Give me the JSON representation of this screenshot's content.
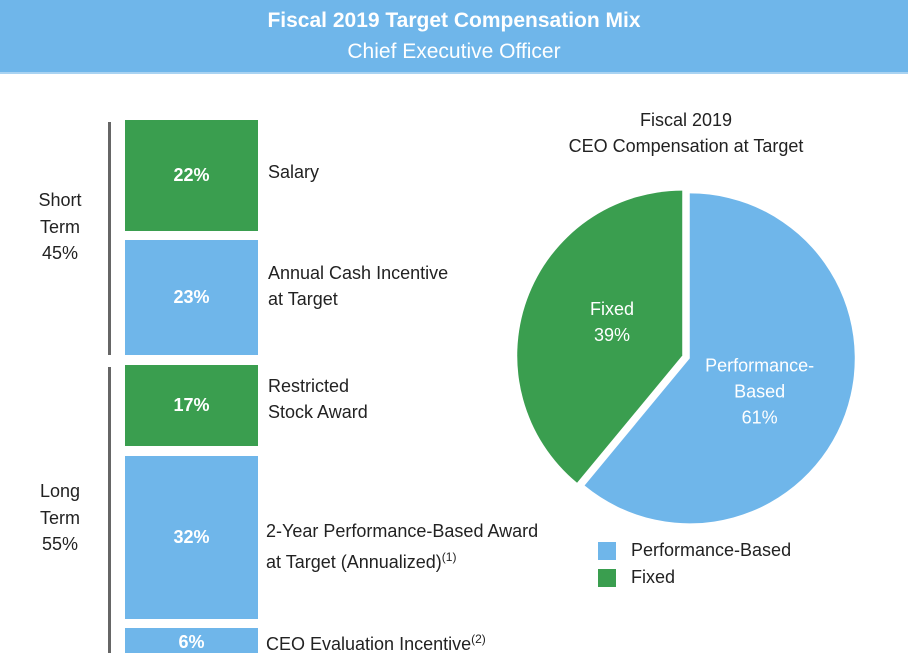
{
  "header": {
    "title": "Fiscal 2019 Target Compensation Mix",
    "subtitle": "Chief Executive Officer"
  },
  "colors": {
    "performance": "#6fb6ea",
    "fixed": "#3a9e4f"
  },
  "chart_data": [
    {
      "type": "bar",
      "orientation": "stacked-vertical",
      "groups": [
        {
          "name": "Short Term",
          "value": "45%"
        },
        {
          "name": "Long Term",
          "value": "55%"
        }
      ],
      "items": [
        {
          "label": "22%",
          "name": "Salary",
          "value": 22,
          "kind": "fixed",
          "group": "Short Term"
        },
        {
          "label": "23%",
          "name": "Annual Cash Incentive at Target",
          "value": 23,
          "kind": "performance",
          "group": "Short Term"
        },
        {
          "label": "17%",
          "name": "Restricted Stock Award",
          "value": 17,
          "kind": "fixed",
          "group": "Long Term"
        },
        {
          "label": "32%",
          "name": "2-Year Performance-Based Award at Target (Annualized)",
          "footnote": "(1)",
          "value": 32,
          "kind": "performance",
          "group": "Long Term"
        },
        {
          "label": "6%",
          "name": "CEO Evaluation Incentive",
          "footnote": "(2)",
          "value": 6,
          "kind": "performance",
          "group": "Long Term"
        }
      ]
    },
    {
      "type": "pie",
      "title": [
        "Fiscal 2019",
        "CEO Compensation at Target"
      ],
      "slices": [
        {
          "name": "Performance-Based",
          "label": [
            "Performance-",
            "Based",
            "61%"
          ],
          "value": 61
        },
        {
          "name": "Fixed",
          "label": [
            "Fixed",
            "39%"
          ],
          "value": 39
        }
      ],
      "legend": {
        "position": "bottom",
        "entries": [
          "Performance-Based",
          "Fixed"
        ]
      }
    }
  ]
}
